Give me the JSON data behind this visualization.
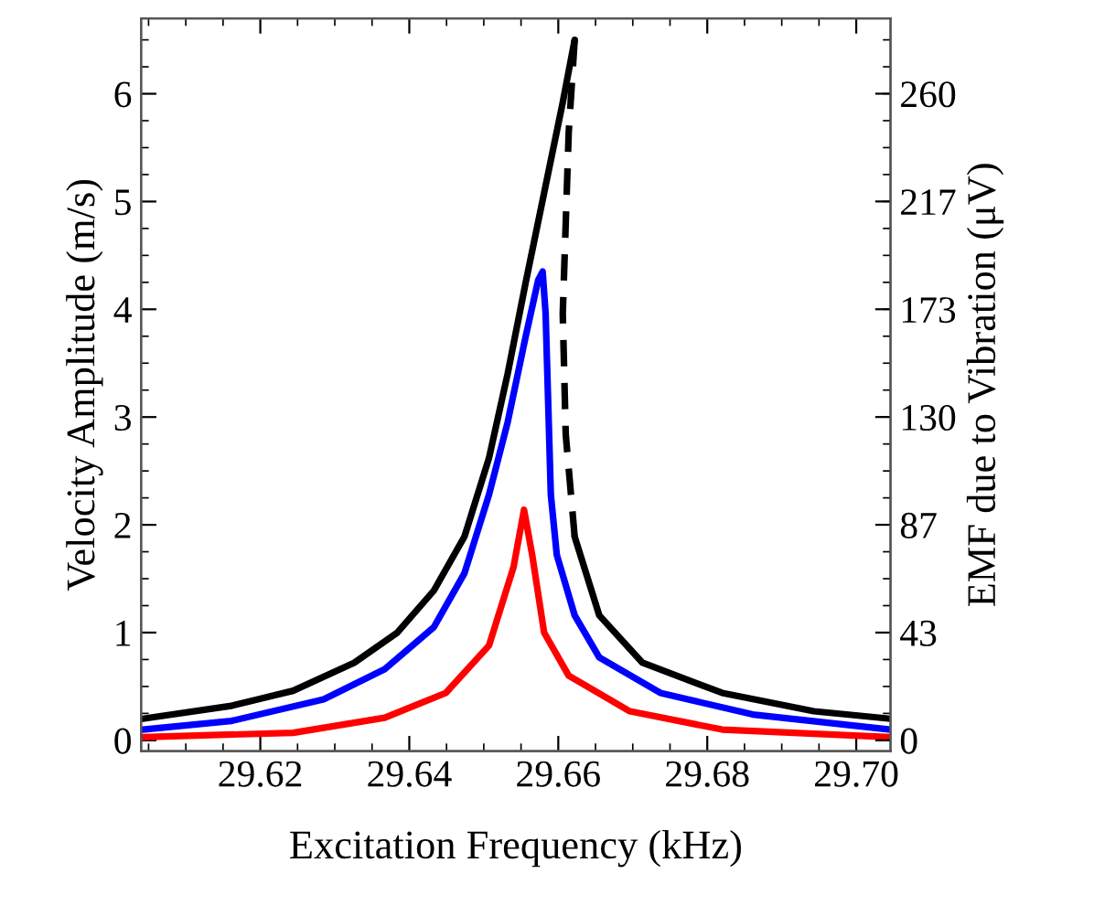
{
  "chart_data": {
    "type": "line",
    "xlabel": "Excitation Frequency (kHz)",
    "ylabel": "Velocity Amplitude (m/s)",
    "y2label": "EMF due to Vibration (μV)",
    "xlim": [
      29.604,
      29.7046
    ],
    "xticks": [
      29.62,
      29.64,
      29.66,
      29.68,
      {
        "value": 29.7,
        "label": "29.70"
      }
    ],
    "ylim": [
      -0.1,
      6.7
    ],
    "yticks": [
      0,
      1,
      2,
      3,
      4,
      5,
      6
    ],
    "y2lim": [
      -4.33,
      290.3
    ],
    "y2ticks": [
      0,
      {
        "value": 43.33,
        "label": "43"
      },
      {
        "value": 86.67,
        "label": "87"
      },
      130,
      {
        "value": 173.33,
        "label": "173"
      },
      {
        "value": 216.67,
        "label": "217"
      },
      260
    ],
    "grid": false,
    "marker": "none",
    "series": [
      {
        "color": "#000000",
        "line_style": "solid",
        "x": [
          29.6042,
          29.6161,
          29.6244,
          29.6326,
          29.6384,
          29.6433,
          29.6474,
          29.6507,
          29.6532,
          29.6556,
          29.6581,
          29.6606,
          29.6622
        ],
        "values": [
          0.2,
          0.32,
          0.46,
          0.72,
          1.0,
          1.39,
          1.89,
          2.62,
          3.4,
          4.24,
          5.08,
          5.92,
          6.5
        ]
      },
      {
        "color": "#000000",
        "line_style": "dashed",
        "x": [
          29.6622,
          29.6614,
          29.6606,
          29.661,
          29.6622
        ],
        "values": [
          6.5,
          5.64,
          3.96,
          2.84,
          1.89
        ]
      },
      {
        "color": "#000000",
        "line_style": "solid",
        "x": [
          29.6622,
          29.6655,
          29.6713,
          29.682,
          29.6943,
          29.7046
        ],
        "values": [
          1.89,
          1.16,
          0.72,
          0.44,
          0.27,
          0.2
        ]
      },
      {
        "color": "#0000ff",
        "line_style": "solid",
        "x": [
          29.6042,
          29.6161,
          29.6285,
          29.6367,
          29.6433,
          29.6474,
          29.6507,
          29.6532,
          29.6556,
          29.6573,
          29.6579,
          29.6583,
          29.659,
          29.6598,
          29.6622,
          29.6655,
          29.6737,
          29.6861,
          29.7046
        ],
        "values": [
          0.1,
          0.18,
          0.38,
          0.66,
          1.05,
          1.55,
          2.28,
          2.95,
          3.74,
          4.27,
          4.35,
          3.96,
          2.28,
          1.72,
          1.16,
          0.77,
          0.44,
          0.24,
          0.1
        ]
      },
      {
        "color": "#ff0000",
        "line_style": "solid",
        "x": [
          29.6042,
          29.6244,
          29.6367,
          29.6449,
          29.6507,
          29.654,
          29.6554,
          29.6565,
          29.6581,
          29.6614,
          29.6696,
          29.682,
          29.7046
        ],
        "values": [
          0.03,
          0.07,
          0.21,
          0.44,
          0.88,
          1.61,
          2.14,
          1.72,
          1.0,
          0.6,
          0.27,
          0.1,
          0.03
        ]
      }
    ]
  }
}
